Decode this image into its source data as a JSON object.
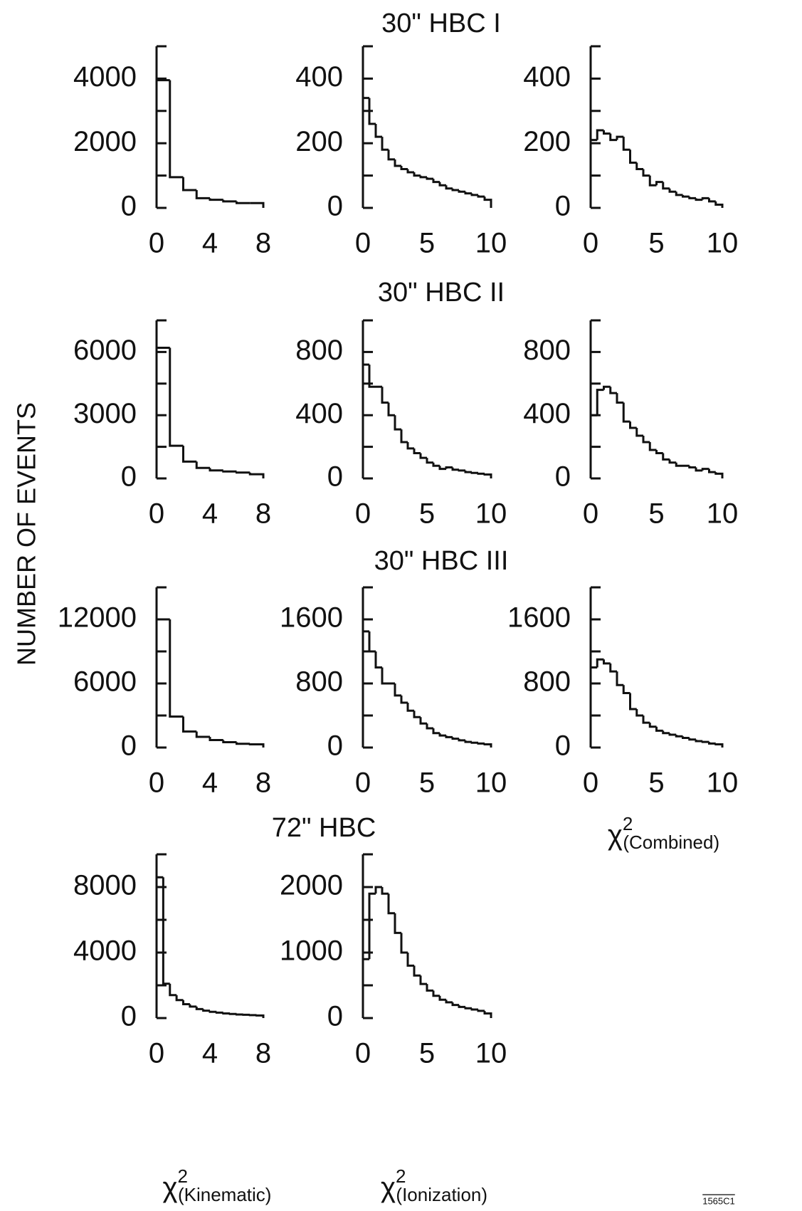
{
  "y_label": "NUMBER OF EVENTS",
  "row_titles": [
    "30\" HBC I",
    "30\" HBC II",
    "30\" HBC III",
    "72\" HBC"
  ],
  "figure_id": "1565C1",
  "chart_data": [
    {
      "type": "histogram",
      "bins": [
        0,
        1,
        2,
        3,
        4,
        5,
        6,
        7,
        8
      ],
      "counts": [
        3950,
        950,
        550,
        300,
        250,
        200,
        150,
        150
      ],
      "xlim": [
        0,
        8
      ],
      "xticks": [
        0,
        4,
        8
      ],
      "ylim": [
        0,
        5000
      ],
      "yticks": [
        0,
        2000,
        4000
      ],
      "minor_yticks": [
        1000,
        3000,
        5000
      ]
    },
    {
      "type": "histogram",
      "bins": [
        0,
        0.5,
        1,
        1.5,
        2,
        2.5,
        3,
        3.5,
        4,
        4.5,
        5,
        5.5,
        6,
        6.5,
        7,
        7.5,
        8,
        8.5,
        9,
        9.5,
        10
      ],
      "counts": [
        340,
        260,
        220,
        180,
        150,
        130,
        120,
        110,
        100,
        95,
        90,
        80,
        70,
        60,
        55,
        50,
        45,
        40,
        35,
        25
      ],
      "xlim": [
        0,
        10
      ],
      "xticks": [
        0,
        5,
        10
      ],
      "ylim": [
        0,
        500
      ],
      "yticks": [
        0,
        200,
        400
      ],
      "minor_yticks": [
        100,
        300,
        500
      ]
    },
    {
      "type": "histogram",
      "bins": [
        0,
        0.5,
        1,
        1.5,
        2,
        2.5,
        3,
        3.5,
        4,
        4.5,
        5,
        5.5,
        6,
        6.5,
        7,
        7.5,
        8,
        8.5,
        9,
        9.5,
        10
      ],
      "counts": [
        210,
        240,
        230,
        210,
        220,
        180,
        140,
        120,
        100,
        70,
        80,
        60,
        50,
        40,
        35,
        30,
        25,
        30,
        20,
        10
      ],
      "xlim": [
        0,
        10
      ],
      "xticks": [
        0,
        5,
        10
      ],
      "ylim": [
        0,
        500
      ],
      "yticks": [
        0,
        200,
        400
      ],
      "minor_yticks": [
        100,
        300,
        500
      ]
    },
    {
      "type": "histogram",
      "bins": [
        0,
        1,
        2,
        3,
        4,
        5,
        6,
        7,
        8
      ],
      "counts": [
        6200,
        1550,
        800,
        500,
        380,
        330,
        280,
        200
      ],
      "xlim": [
        0,
        8
      ],
      "xticks": [
        0,
        4,
        8
      ],
      "ylim": [
        0,
        7500
      ],
      "yticks": [
        0,
        3000,
        6000
      ],
      "minor_yticks": [
        1500,
        4500,
        7500
      ]
    },
    {
      "type": "histogram",
      "bins": [
        0,
        0.5,
        1,
        1.5,
        2,
        2.5,
        3,
        3.5,
        4,
        4.5,
        5,
        5.5,
        6,
        6.5,
        7,
        7.5,
        8,
        8.5,
        9,
        9.5,
        10
      ],
      "counts": [
        720,
        580,
        580,
        480,
        400,
        310,
        230,
        190,
        160,
        130,
        100,
        80,
        60,
        70,
        55,
        50,
        40,
        35,
        30,
        25
      ],
      "xlim": [
        0,
        10
      ],
      "xticks": [
        0,
        5,
        10
      ],
      "ylim": [
        0,
        1000
      ],
      "yticks": [
        0,
        400,
        800
      ],
      "minor_yticks": [
        200,
        600,
        1000
      ]
    },
    {
      "type": "histogram",
      "bins": [
        0,
        0.5,
        1,
        1.5,
        2,
        2.5,
        3,
        3.5,
        4,
        4.5,
        5,
        5.5,
        6,
        6.5,
        7,
        7.5,
        8,
        8.5,
        9,
        9.5,
        10
      ],
      "counts": [
        400,
        560,
        580,
        540,
        480,
        360,
        320,
        270,
        230,
        180,
        160,
        120,
        100,
        80,
        80,
        70,
        50,
        60,
        40,
        30
      ],
      "xlim": [
        0,
        10
      ],
      "xticks": [
        0,
        5,
        10
      ],
      "ylim": [
        0,
        1000
      ],
      "yticks": [
        0,
        400,
        800
      ],
      "minor_yticks": [
        200,
        600,
        1000
      ]
    },
    {
      "type": "histogram",
      "bins": [
        0,
        1,
        2,
        3,
        4,
        5,
        6,
        7,
        8
      ],
      "counts": [
        12000,
        2900,
        1500,
        1000,
        700,
        500,
        350,
        300
      ],
      "xlim": [
        0,
        8
      ],
      "xticks": [
        0,
        4,
        8
      ],
      "ylim": [
        0,
        15000
      ],
      "yticks": [
        0,
        6000,
        12000
      ],
      "minor_yticks": [
        3000,
        9000,
        15000
      ]
    },
    {
      "type": "histogram",
      "bins": [
        0,
        0.5,
        1,
        1.5,
        2,
        2.5,
        3,
        3.5,
        4,
        4.5,
        5,
        5.5,
        6,
        6.5,
        7,
        7.5,
        8,
        8.5,
        9,
        9.5,
        10
      ],
      "counts": [
        1450,
        1200,
        1000,
        800,
        800,
        650,
        560,
        460,
        380,
        300,
        240,
        180,
        150,
        130,
        110,
        90,
        70,
        60,
        50,
        40
      ],
      "xlim": [
        0,
        10
      ],
      "xticks": [
        0,
        5,
        10
      ],
      "ylim": [
        0,
        2000
      ],
      "yticks": [
        0,
        800,
        1600
      ],
      "minor_yticks": [
        400,
        1200,
        2000
      ]
    },
    {
      "type": "histogram",
      "bins": [
        0,
        0.5,
        1,
        1.5,
        2,
        2.5,
        3,
        3.5,
        4,
        4.5,
        5,
        5.5,
        6,
        6.5,
        7,
        7.5,
        8,
        8.5,
        9,
        9.5,
        10
      ],
      "counts": [
        1000,
        1100,
        1050,
        950,
        780,
        680,
        480,
        400,
        310,
        260,
        210,
        180,
        160,
        140,
        120,
        100,
        80,
        70,
        50,
        40
      ],
      "xlim": [
        0,
        10
      ],
      "xticks": [
        0,
        5,
        10
      ],
      "ylim": [
        0,
        2000
      ],
      "yticks": [
        0,
        800,
        1600
      ],
      "minor_yticks": [
        400,
        1200,
        2000
      ],
      "x_label": {
        "symbol": "χ",
        "power": "2",
        "subscript": "(Combined)"
      }
    },
    {
      "type": "histogram",
      "bins": [
        0,
        0.5,
        1,
        1.5,
        2,
        2.5,
        3,
        3.5,
        4,
        4.5,
        5,
        5.5,
        6,
        6.5,
        7,
        7.5,
        8
      ],
      "counts": [
        8600,
        2100,
        1400,
        1100,
        850,
        700,
        550,
        450,
        380,
        330,
        280,
        250,
        220,
        200,
        180,
        160
      ],
      "xlim": [
        0,
        8
      ],
      "xticks": [
        0,
        4,
        8
      ],
      "ylim": [
        0,
        10000
      ],
      "yticks": [
        0,
        4000,
        8000
      ],
      "minor_yticks": [
        2000,
        6000,
        10000
      ],
      "x_label": {
        "symbol": "χ",
        "power": "2",
        "subscript": "(Kinematic)"
      }
    },
    {
      "type": "histogram",
      "bins": [
        0,
        0.5,
        1,
        1.5,
        2,
        2.5,
        3,
        3.5,
        4,
        4.5,
        5,
        5.5,
        6,
        6.5,
        7,
        7.5,
        8,
        8.5,
        9,
        9.5,
        10
      ],
      "counts": [
        900,
        1900,
        2000,
        1900,
        1600,
        1300,
        1000,
        800,
        650,
        520,
        420,
        340,
        280,
        240,
        200,
        170,
        150,
        130,
        110,
        70
      ],
      "xlim": [
        0,
        10
      ],
      "xticks": [
        0,
        5,
        10
      ],
      "ylim": [
        0,
        2500
      ],
      "yticks": [
        0,
        1000,
        2000
      ],
      "minor_yticks": [
        500,
        1500,
        2500
      ],
      "x_label": {
        "symbol": "χ",
        "power": "2",
        "subscript": "(Ionization)"
      }
    }
  ]
}
